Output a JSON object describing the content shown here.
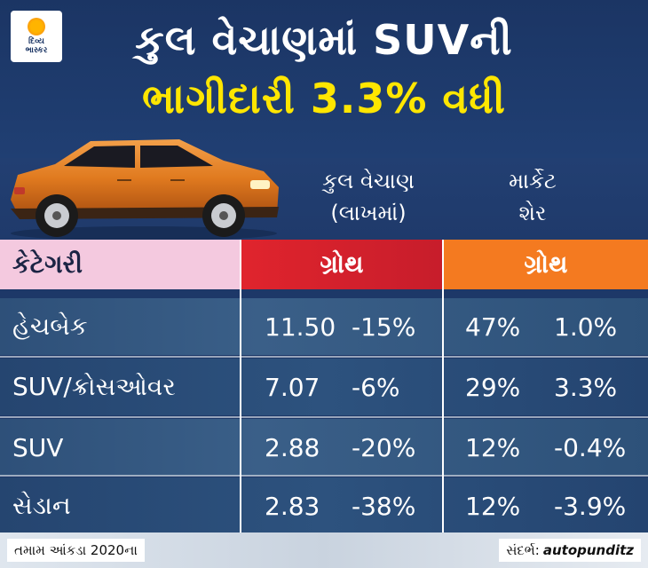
{
  "brand": {
    "logo_line1": "દિવ્ય",
    "logo_line2": "ભાસ્કર",
    "logo_icon": "sun-icon"
  },
  "title": {
    "line1": "કુલ વેચાણમાં SUVની",
    "line2": "ભાગીદારી 3.3% વધી"
  },
  "column_headings": {
    "sales_line1": "કુલ વેચાણ",
    "sales_line2": "(લાખમાં)",
    "share_line1": "માર્કેટ",
    "share_line2": "શેર"
  },
  "table": {
    "header": {
      "category": "કેટેગરી",
      "growth_sales": "ગ્રોથ",
      "growth_share": "ગ્રોથ"
    },
    "rows": [
      {
        "category": "હેચબેક",
        "sales": "11.50",
        "sales_growth": "-15%",
        "share": "47%",
        "share_growth": "1.0%"
      },
      {
        "category": "SUV/ક્રોસઓવર",
        "sales": "7.07",
        "sales_growth": "-6%",
        "share": "29%",
        "share_growth": "3.3%"
      },
      {
        "category": "SUV",
        "sales": "2.88",
        "sales_growth": "-20%",
        "share": "12%",
        "share_growth": "-0.4%"
      },
      {
        "category": "સેડાન",
        "sales": "2.83",
        "sales_growth": "-38%",
        "share": "12%",
        "share_growth": "-3.9%"
      }
    ]
  },
  "footer": {
    "note": "તમામ આંકડા 2020ના",
    "source_label": "સંદર્ભ:",
    "source_value": "autopunditz"
  },
  "colors": {
    "background": "#1d3868",
    "title_highlight": "#ffe600",
    "category_header": "#f4c9df",
    "sales_growth_header": "#e0242d",
    "share_growth_header": "#f47a20"
  }
}
